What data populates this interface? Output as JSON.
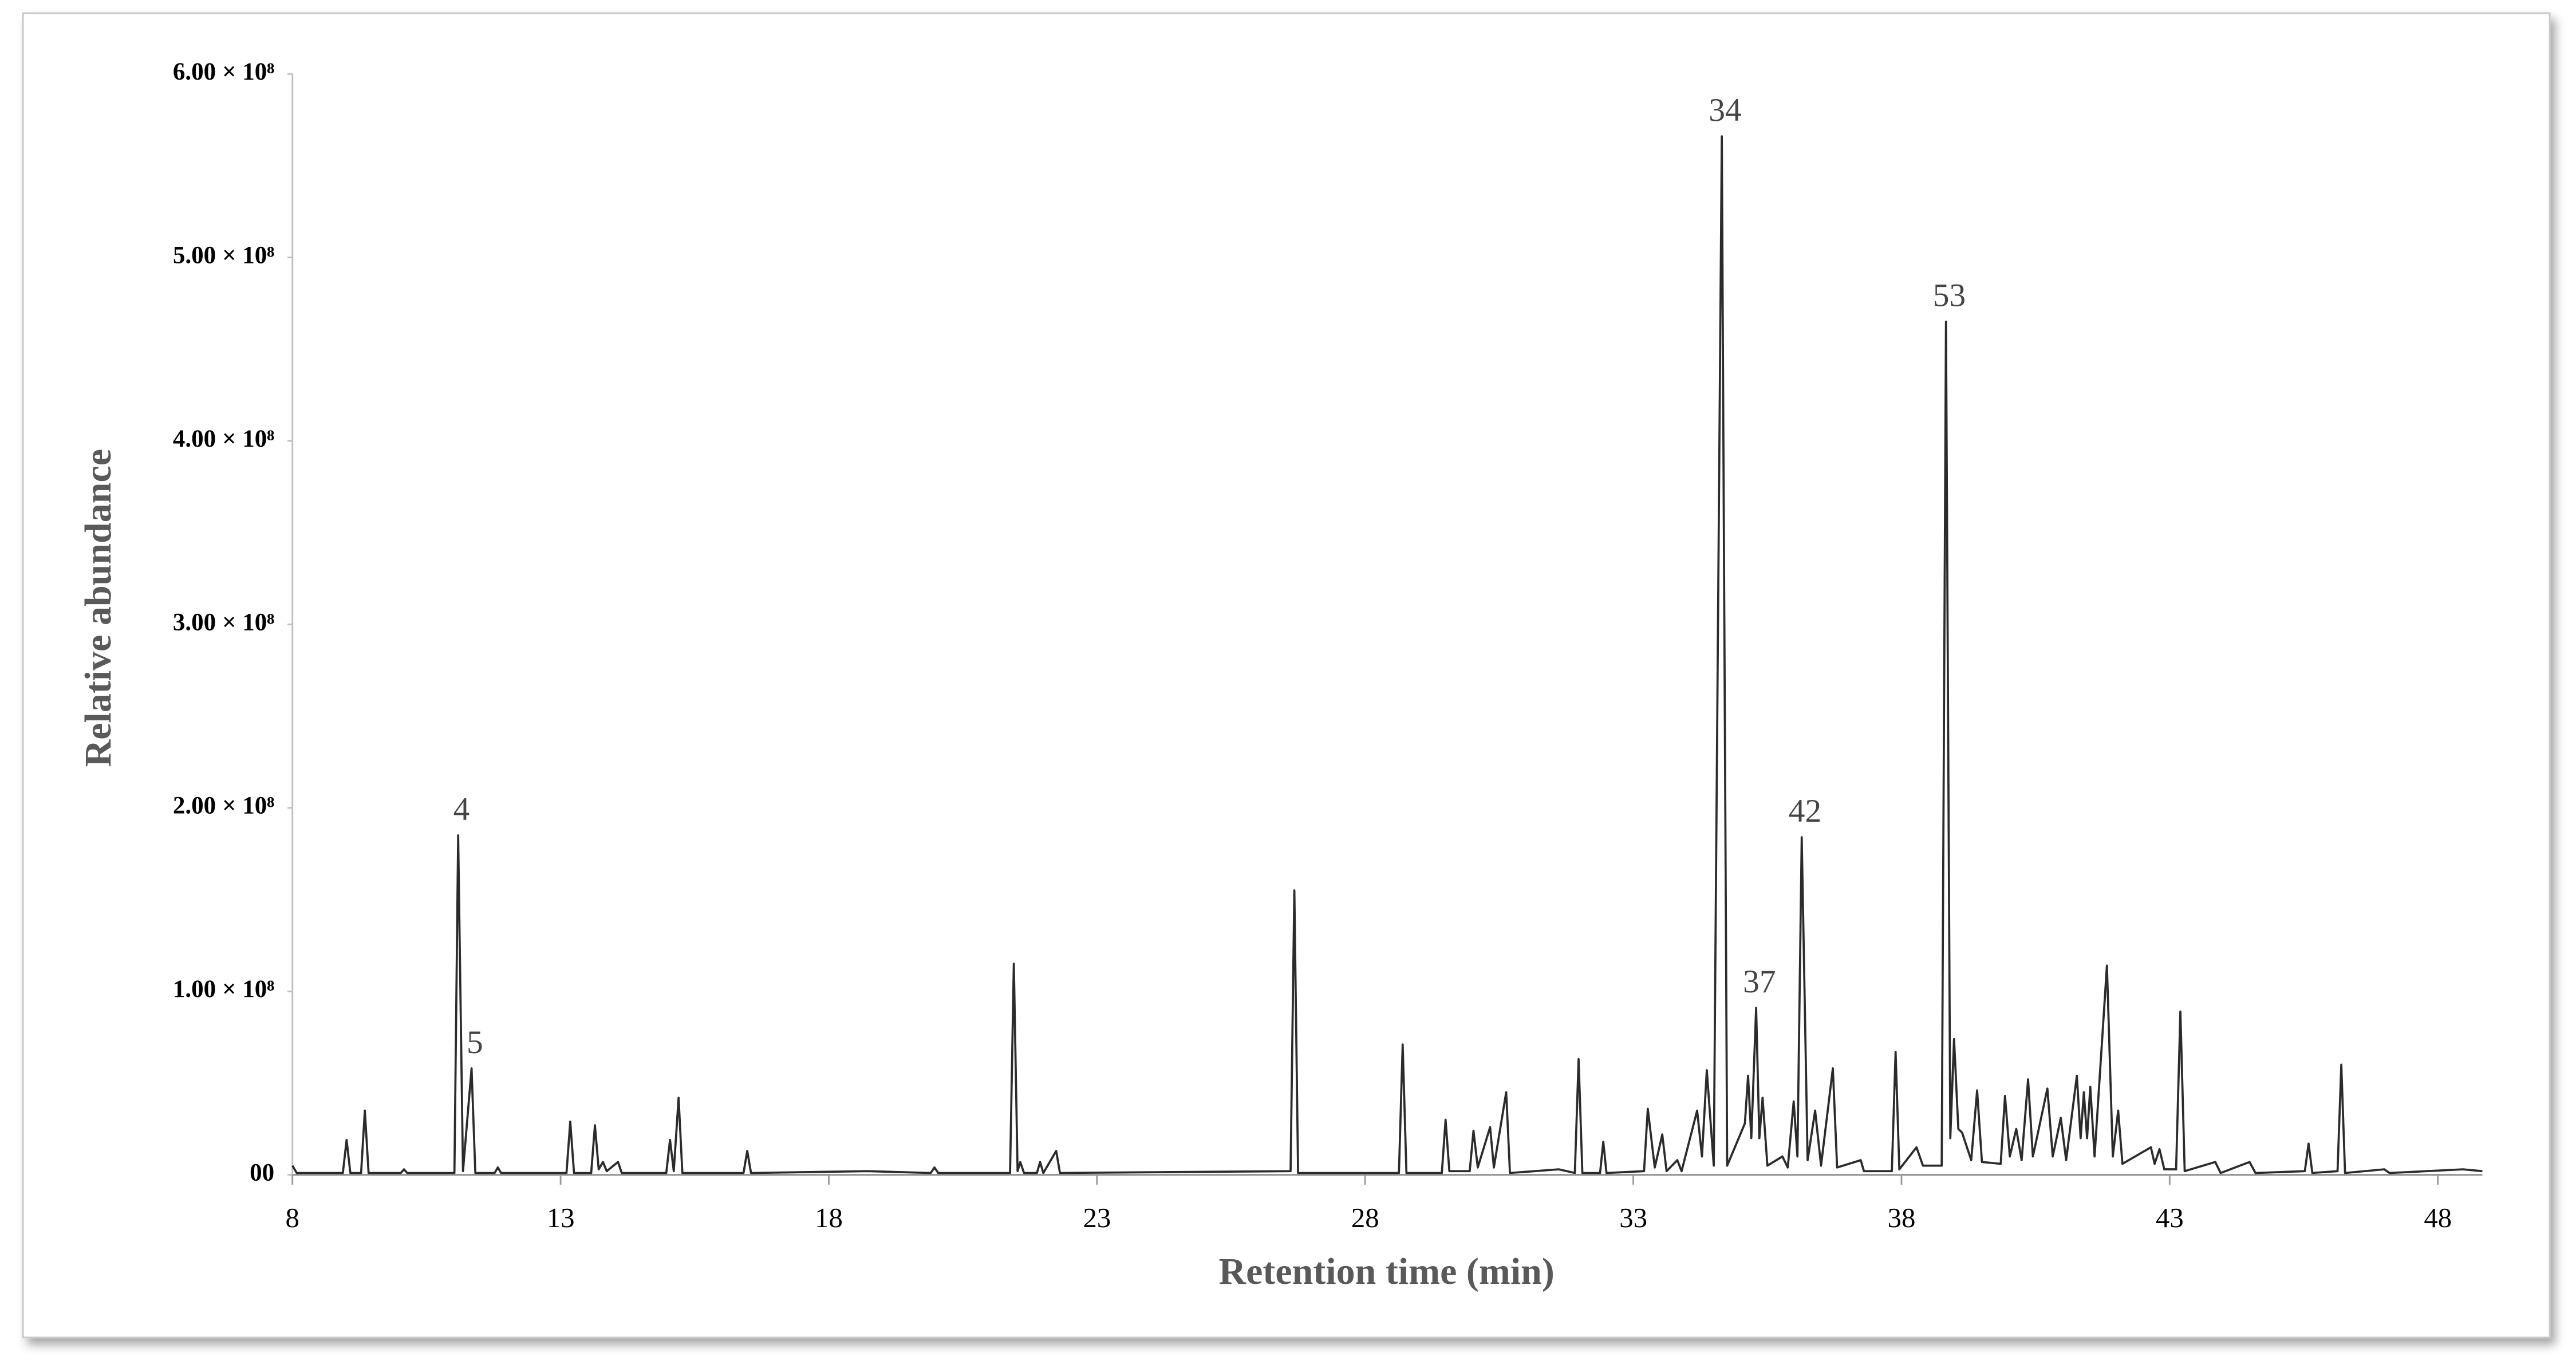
{
  "chart_data": {
    "type": "line",
    "x_label": "Retention time (min)",
    "y_label": "Relative abundance",
    "color": "#2b2b2b",
    "grid": false,
    "xlim": [
      8,
      48.83
    ],
    "xticks": [
      8,
      13,
      18,
      23,
      28,
      33,
      38,
      43,
      48
    ],
    "ylim": [
      0,
      600000000
    ],
    "yticks": [
      {
        "value": 0,
        "label": "00"
      },
      {
        "value": 100000000,
        "label": "1.00 × 10⁸"
      },
      {
        "value": 200000000,
        "label": "2.00 × 10⁸"
      },
      {
        "value": 300000000,
        "label": "3.00 × 10⁸"
      },
      {
        "value": 400000000,
        "label": "4.00 × 10⁸"
      },
      {
        "value": 500000000,
        "label": "5.00 × 10⁸"
      },
      {
        "value": 600000000,
        "label": "6.00 × 10⁸"
      }
    ],
    "x": [
      8.0,
      8.08,
      8.94,
      9.01,
      9.08,
      9.28,
      9.35,
      9.42,
      10.02,
      10.08,
      10.14,
      11.02,
      11.09,
      11.18,
      11.34,
      11.41,
      11.77,
      11.83,
      11.89,
      13.11,
      13.18,
      13.25,
      13.57,
      13.64,
      13.71,
      13.79,
      13.86,
      14.07,
      14.14,
      14.97,
      15.04,
      15.11,
      15.2,
      15.27,
      16.41,
      16.48,
      16.55,
      18.72,
      19.9,
      19.97,
      20.04,
      21.38,
      21.45,
      21.52,
      21.57,
      21.64,
      21.88,
      21.94,
      22.0,
      22.24,
      22.31,
      26.61,
      26.68,
      26.75,
      28.63,
      28.7,
      28.77,
      29.43,
      29.5,
      29.57,
      29.95,
      30.02,
      30.1,
      30.33,
      30.4,
      30.63,
      30.7,
      31.61,
      31.91,
      31.98,
      32.05,
      32.38,
      32.44,
      32.5,
      33.2,
      33.27,
      33.4,
      33.54,
      33.62,
      33.82,
      33.9,
      34.19,
      34.28,
      34.37,
      34.5,
      34.65,
      34.75,
      35.08,
      35.14,
      35.2,
      35.29,
      35.35,
      35.41,
      35.5,
      35.78,
      35.88,
      35.99,
      36.06,
      36.14,
      36.25,
      36.39,
      36.5,
      36.72,
      36.8,
      37.24,
      37.3,
      37.82,
      37.89,
      37.96,
      38.28,
      38.4,
      38.75,
      38.83,
      38.91,
      38.98,
      39.06,
      39.13,
      39.3,
      39.41,
      39.5,
      39.85,
      39.93,
      40.02,
      40.14,
      40.24,
      40.36,
      40.45,
      40.72,
      40.82,
      40.97,
      41.07,
      41.27,
      41.34,
      41.4,
      41.46,
      41.52,
      41.6,
      41.83,
      41.94,
      42.04,
      42.12,
      42.65,
      42.72,
      42.81,
      42.9,
      43.12,
      43.2,
      43.28,
      43.85,
      43.95,
      44.49,
      44.6,
      45.52,
      45.59,
      45.66,
      46.13,
      46.2,
      46.27,
      47.0,
      47.1,
      48.47,
      48.83
    ],
    "values": [
      5000000.0,
      1000000.0,
      1000000.0,
      19000000.0,
      1000000.0,
      1000000.0,
      35000000.0,
      1000000.0,
      1000000.0,
      3000000.0,
      1000000.0,
      1000000.0,
      185000000.0,
      2000000.0,
      58000000.0,
      1000000.0,
      1000000.0,
      4000000.0,
      1000000.0,
      1000000.0,
      29000000.0,
      1000000.0,
      1000000.0,
      27000000.0,
      3000000.0,
      7000000.0,
      2000000.0,
      7000000.0,
      1000000.0,
      1000000.0,
      19000000.0,
      2000000.0,
      42000000.0,
      1000000.0,
      1000000.0,
      13000000.0,
      1000000.0,
      2000000.0,
      1000000.0,
      4000000.0,
      1000000.0,
      1000000.0,
      115000000.0,
      2000000.0,
      7000000.0,
      1000000.0,
      1000000.0,
      7000000.0,
      1000000.0,
      13000000.0,
      1000000.0,
      2000000.0,
      155000000.0,
      1000000.0,
      1000000.0,
      71000000.0,
      1000000.0,
      1000000.0,
      30000000.0,
      2000000.0,
      2000000.0,
      24000000.0,
      4000000.0,
      26000000.0,
      4000000.0,
      45000000.0,
      1000000.0,
      3000000.0,
      1000000.0,
      63000000.0,
      1000000.0,
      1000000.0,
      18000000.0,
      1000000.0,
      2000000.0,
      36000000.0,
      4000000.0,
      22000000.0,
      2000000.0,
      8000000.0,
      2000000.0,
      35000000.0,
      10000000.0,
      57000000.0,
      5000000.0,
      566000000.0,
      5000000.0,
      28000000.0,
      54000000.0,
      20000000.0,
      91000000.0,
      20000000.0,
      42000000.0,
      5000000.0,
      10000000.0,
      4000000.0,
      40000000.0,
      10000000.0,
      184000000.0,
      8000000.0,
      35000000.0,
      5000000.0,
      58000000.0,
      4000000.0,
      8000000.0,
      2000000.0,
      2000000.0,
      67000000.0,
      3000000.0,
      15000000.0,
      5000000.0,
      5000000.0,
      465000000.0,
      20000000.0,
      74000000.0,
      25000000.0,
      23000000.0,
      8000000.0,
      46000000.0,
      7000000.0,
      6000000.0,
      43000000.0,
      10000000.0,
      25000000.0,
      8000000.0,
      52000000.0,
      10000000.0,
      47000000.0,
      10000000.0,
      31000000.0,
      8000000.0,
      54000000.0,
      20000000.0,
      45000000.0,
      20000000.0,
      48000000.0,
      10000000.0,
      114000000.0,
      10000000.0,
      35000000.0,
      6000000.0,
      15000000.0,
      6000000.0,
      14000000.0,
      3000000.0,
      3000000.0,
      89000000.0,
      2000000.0,
      7000000.0,
      1000000.0,
      7000000.0,
      1000000.0,
      2000000.0,
      17000000.0,
      1000000.0,
      2000000.0,
      60000000.0,
      1000000.0,
      3000000.0,
      1000000.0,
      3000000.0,
      2000000.0
    ],
    "annotations": [
      {
        "label": "4",
        "x": 11.09,
        "y": 185000000.0
      },
      {
        "label": "5",
        "x": 11.34,
        "y": 58000000.0
      },
      {
        "label": "34",
        "x": 34.65,
        "y": 566000000.0
      },
      {
        "label": "37",
        "x": 35.29,
        "y": 91000000.0
      },
      {
        "label": "42",
        "x": 36.14,
        "y": 184000000.0
      },
      {
        "label": "53",
        "x": 38.83,
        "y": 465000000.0
      }
    ]
  }
}
